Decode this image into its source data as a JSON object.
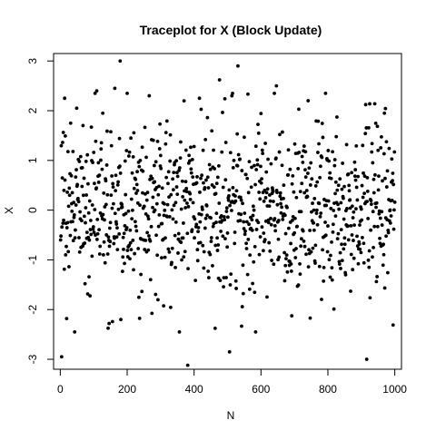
{
  "chart_data": {
    "type": "scatter",
    "title": "Traceplot for X (Block Update)",
    "xlabel": "N",
    "ylabel": "X",
    "xlim": [
      -20,
      1020
    ],
    "ylim": [
      -3.2,
      3.15
    ],
    "xticks": [
      0,
      200,
      400,
      600,
      800,
      1000
    ],
    "yticks": [
      -3,
      -2,
      -1,
      0,
      1,
      2,
      3
    ],
    "xtick_labels": [
      "0",
      "200",
      "400",
      "600",
      "800",
      "1000"
    ],
    "ytick_labels": [
      "-3",
      "-2",
      "-1",
      "0",
      "1",
      "2",
      "3"
    ],
    "grid": false,
    "legend": "none",
    "marker_color": "#000000",
    "n_points": 1000,
    "notable_points": [
      {
        "x": 3,
        "y": -2.95
      },
      {
        "x": 12,
        "y": 2.25
      },
      {
        "x": 18,
        "y": -2.18
      },
      {
        "x": 30,
        "y": 1.75
      },
      {
        "x": 48,
        "y": 2.05
      },
      {
        "x": 108,
        "y": 2.4
      },
      {
        "x": 126,
        "y": 1.95
      },
      {
        "x": 145,
        "y": -2.28
      },
      {
        "x": 162,
        "y": 2.45
      },
      {
        "x": 178,
        "y": 3.0
      },
      {
        "x": 180,
        "y": -2.2
      },
      {
        "x": 265,
        "y": 2.3
      },
      {
        "x": 380,
        "y": -3.12
      },
      {
        "x": 415,
        "y": 2.25
      },
      {
        "x": 475,
        "y": 2.62
      },
      {
        "x": 505,
        "y": -2.85
      },
      {
        "x": 512,
        "y": 2.3
      },
      {
        "x": 530,
        "y": 2.9
      },
      {
        "x": 645,
        "y": 2.5
      },
      {
        "x": 740,
        "y": 2.2
      },
      {
        "x": 915,
        "y": -3.0
      },
      {
        "x": 968,
        "y": 1.95
      }
    ]
  }
}
